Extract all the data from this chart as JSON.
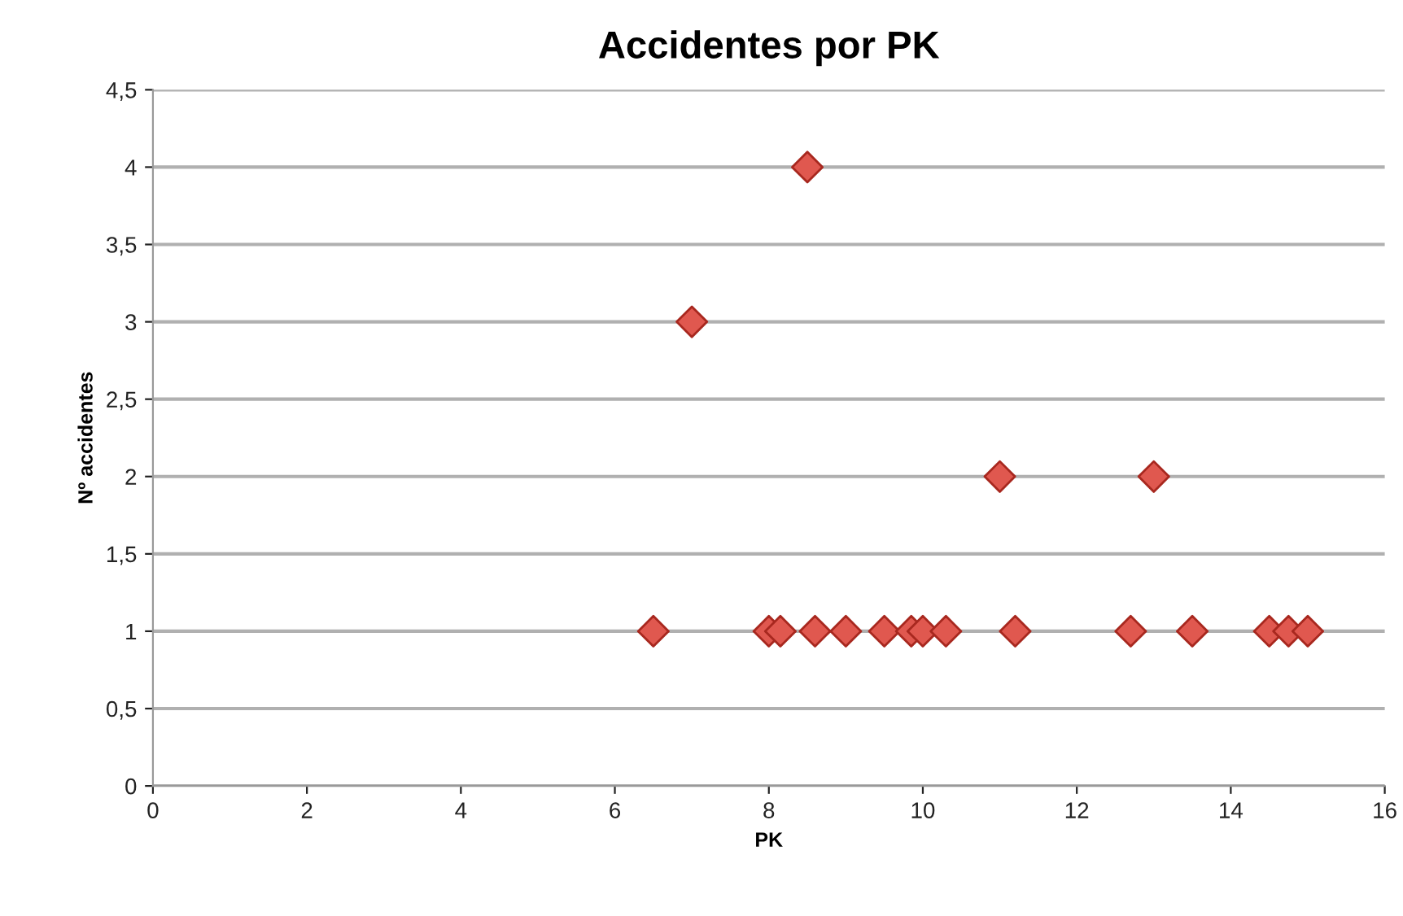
{
  "chart_data": {
    "type": "scatter",
    "title": "Accidentes por PK",
    "xlabel": "PK",
    "ylabel": "Nº accidentes",
    "x": [
      6.5,
      7.0,
      8.0,
      8.15,
      8.5,
      8.6,
      9.0,
      9.5,
      9.85,
      10.0,
      10.3,
      11.0,
      11.2,
      12.7,
      13.0,
      13.5,
      14.5,
      14.75,
      15.0
    ],
    "values": [
      1,
      3,
      1,
      1,
      4,
      1,
      1,
      1,
      1,
      1,
      1,
      2,
      1,
      1,
      2,
      1,
      1,
      1,
      1
    ],
    "color": "#e0584f",
    "marker": "diamond",
    "xlim": [
      0,
      16
    ],
    "xticks": [
      0,
      2,
      4,
      6,
      8,
      10,
      12,
      14,
      16
    ],
    "ylim": [
      0,
      4.5
    ],
    "yticks": [
      0,
      {
        "value": 0.5,
        "label": "0,5"
      },
      1,
      {
        "value": 1.5,
        "label": "1,5"
      },
      2,
      {
        "value": 2.5,
        "label": "2,5"
      },
      3,
      {
        "value": 3.5,
        "label": "3,5"
      },
      4,
      {
        "value": 4.5,
        "label": "4,5"
      }
    ],
    "grid": "y",
    "legend": false
  }
}
